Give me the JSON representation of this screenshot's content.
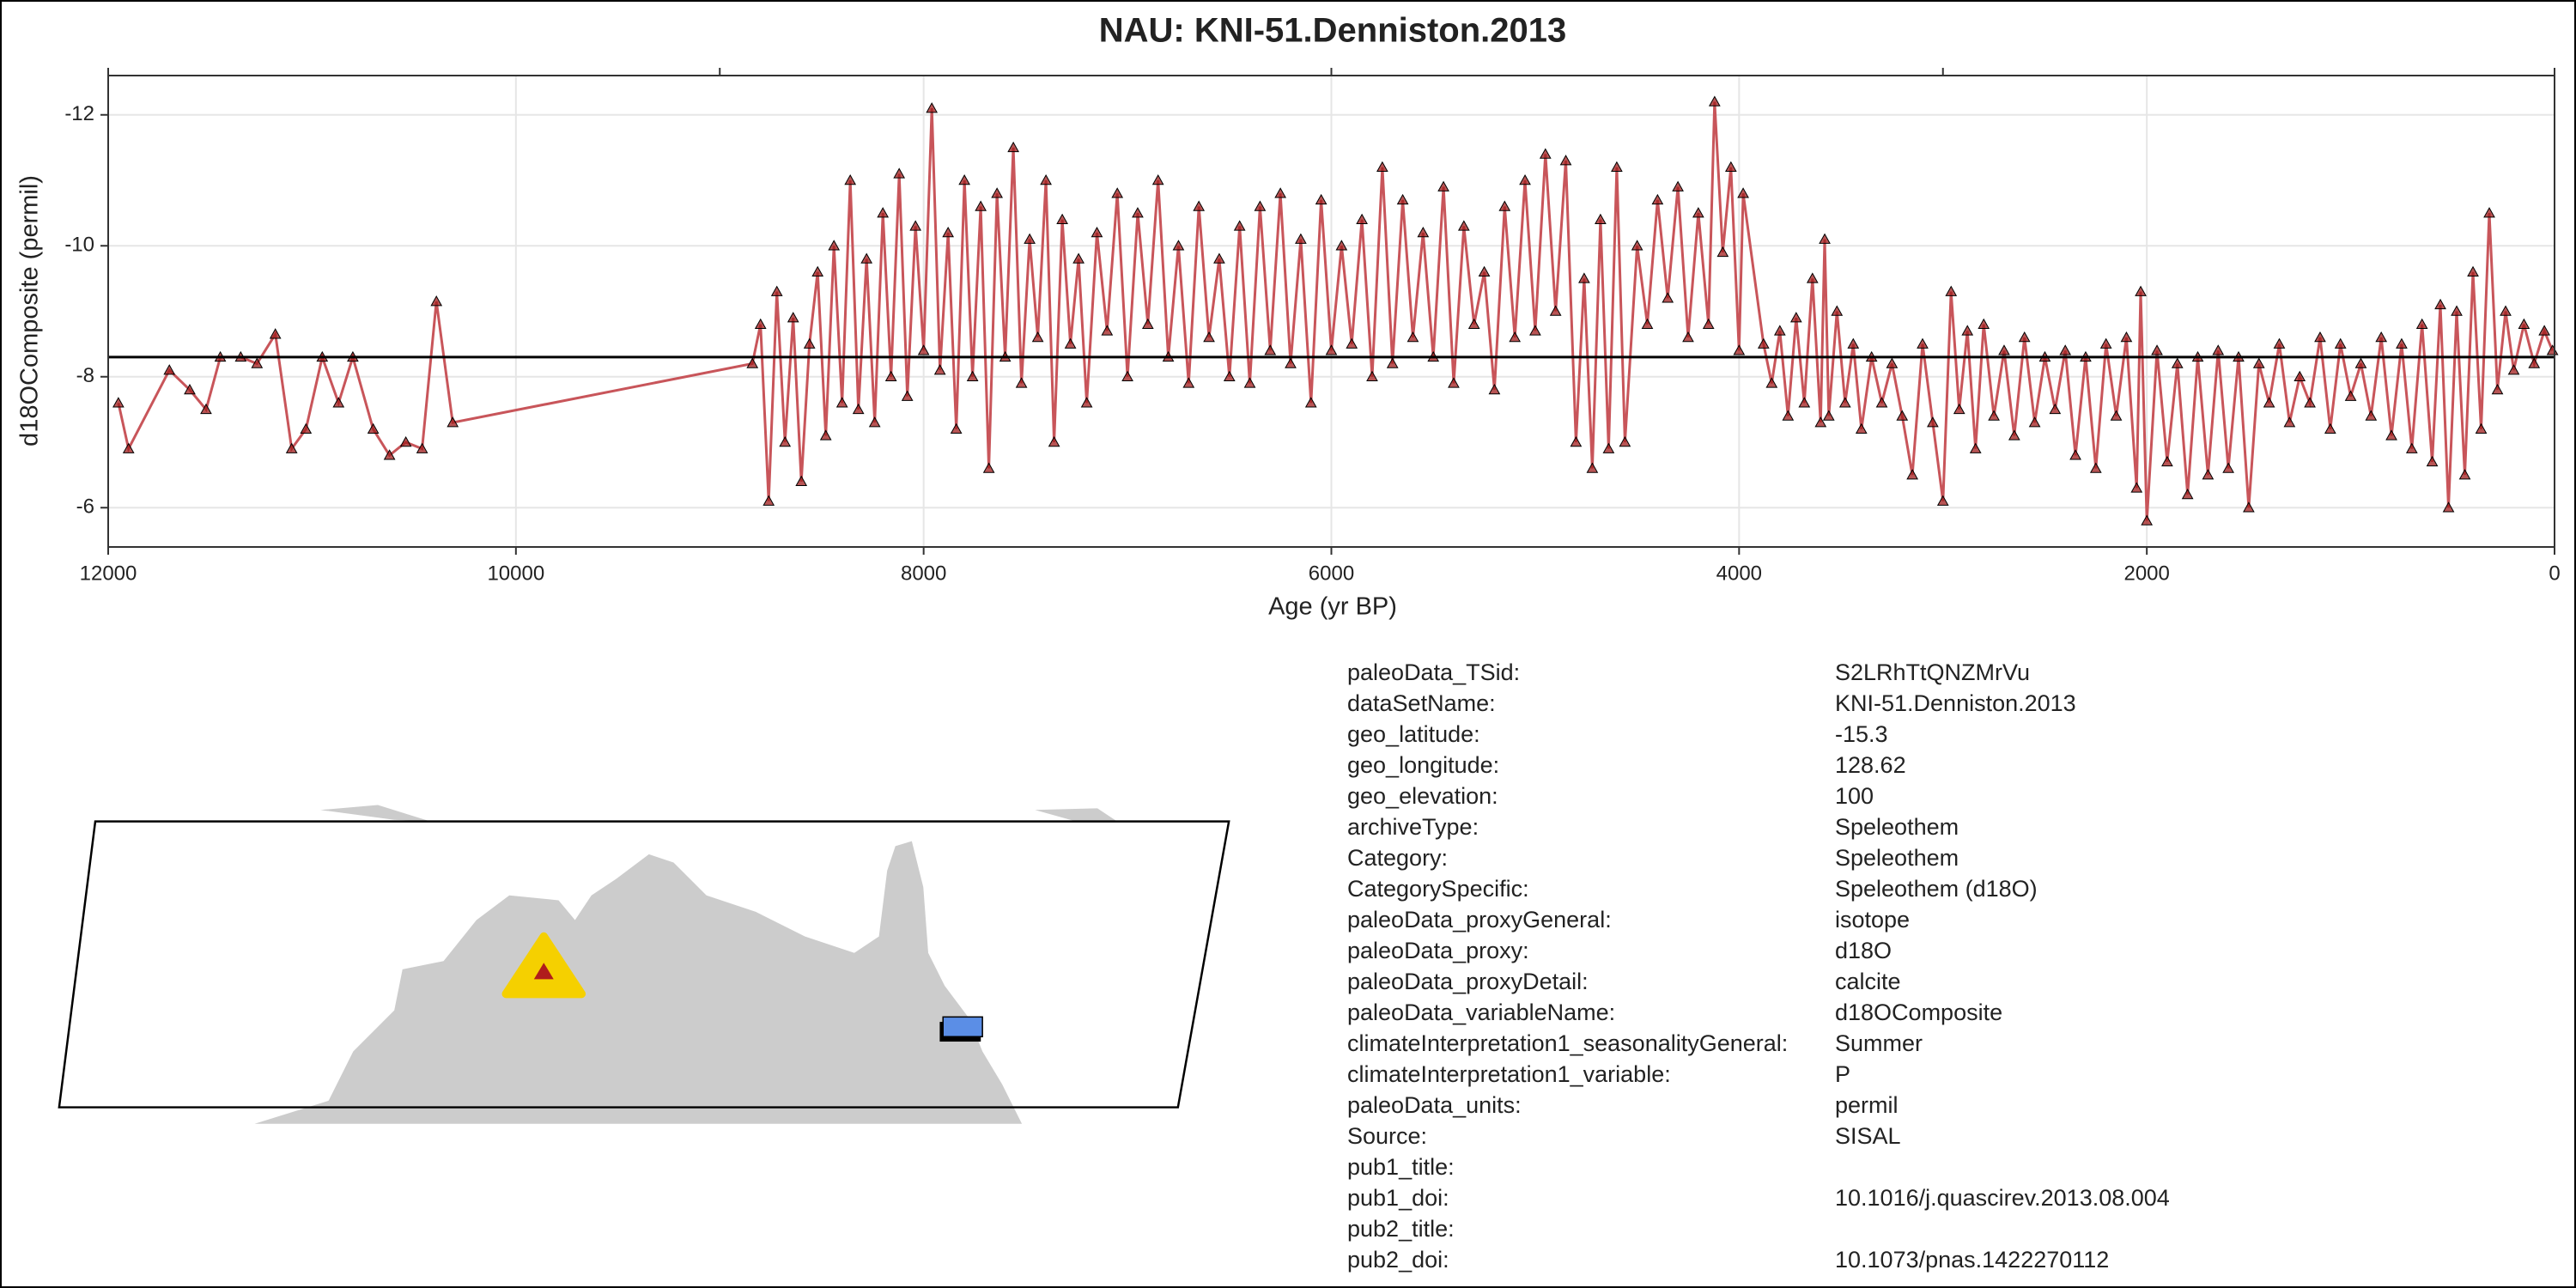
{
  "chart_data": {
    "type": "line",
    "title": "NAU: KNI-51.Denniston.2013",
    "x_label": "Age (yr BP)",
    "y_label": "d18OComposite (permil)",
    "xlim": [
      12000,
      0
    ],
    "xticks": [
      12000,
      10000,
      8000,
      6000,
      4000,
      2000,
      0
    ],
    "x2ticks": [
      12000,
      9000,
      6000,
      3000,
      0
    ],
    "ylim": [
      -5.4,
      -12.6
    ],
    "yticks": [
      -12,
      -10,
      -8,
      -6
    ],
    "grid": true,
    "color": "#c8555a",
    "marker_color": "#a01c1c",
    "hline": -8.3,
    "x": [
      11950,
      11900,
      11700,
      11600,
      11520,
      11450,
      11350,
      11270,
      11180,
      11100,
      11030,
      10950,
      10870,
      10800,
      10700,
      10620,
      10540,
      10460,
      10390,
      10310,
      8840,
      8800,
      8760,
      8720,
      8680,
      8640,
      8600,
      8560,
      8520,
      8480,
      8440,
      8400,
      8360,
      8320,
      8280,
      8240,
      8200,
      8160,
      8120,
      8080,
      8040,
      8000,
      7960,
      7920,
      7880,
      7840,
      7800,
      7760,
      7720,
      7680,
      7640,
      7600,
      7560,
      7520,
      7480,
      7440,
      7400,
      7360,
      7320,
      7280,
      7240,
      7200,
      7150,
      7100,
      7050,
      7000,
      6950,
      6900,
      6850,
      6800,
      6750,
      6700,
      6650,
      6600,
      6550,
      6500,
      6450,
      6400,
      6350,
      6300,
      6250,
      6200,
      6150,
      6100,
      6050,
      6000,
      5950,
      5900,
      5850,
      5800,
      5750,
      5700,
      5650,
      5600,
      5550,
      5500,
      5450,
      5400,
      5350,
      5300,
      5250,
      5200,
      5150,
      5100,
      5050,
      5000,
      4950,
      4900,
      4850,
      4800,
      4760,
      4720,
      4680,
      4640,
      4600,
      4560,
      4500,
      4450,
      4400,
      4350,
      4300,
      4250,
      4200,
      4150,
      4120,
      4080,
      4040,
      4000,
      3980,
      3880,
      3840,
      3800,
      3760,
      3720,
      3680,
      3640,
      3600,
      3580,
      3560,
      3520,
      3480,
      3440,
      3400,
      3350,
      3300,
      3250,
      3200,
      3150,
      3100,
      3050,
      3000,
      2960,
      2920,
      2880,
      2840,
      2800,
      2750,
      2700,
      2650,
      2600,
      2550,
      2500,
      2450,
      2400,
      2350,
      2300,
      2250,
      2200,
      2150,
      2100,
      2050,
      2030,
      2000,
      1950,
      1900,
      1850,
      1800,
      1750,
      1700,
      1650,
      1600,
      1550,
      1500,
      1450,
      1400,
      1350,
      1300,
      1250,
      1200,
      1150,
      1100,
      1050,
      1000,
      950,
      900,
      850,
      800,
      750,
      700,
      650,
      600,
      560,
      520,
      480,
      440,
      400,
      360,
      320,
      280,
      240,
      200,
      150,
      100,
      50,
      10
    ],
    "values": [
      -7.6,
      -6.9,
      -8.1,
      -7.8,
      -7.5,
      -8.3,
      -8.3,
      -8.2,
      -8.65,
      -6.9,
      -7.2,
      -8.3,
      -7.6,
      -8.3,
      -7.2,
      -6.8,
      -7.0,
      -6.9,
      -9.15,
      -7.3,
      -8.2,
      -8.8,
      -6.1,
      -9.3,
      -7.0,
      -8.9,
      -6.4,
      -8.5,
      -9.6,
      -7.1,
      -10.0,
      -7.6,
      -11.0,
      -7.5,
      -9.8,
      -7.3,
      -10.5,
      -8.0,
      -11.1,
      -7.7,
      -10.3,
      -8.4,
      -12.1,
      -8.1,
      -10.2,
      -7.2,
      -11.0,
      -8.0,
      -10.6,
      -6.6,
      -10.8,
      -8.3,
      -11.5,
      -7.9,
      -10.1,
      -8.6,
      -11.0,
      -7.0,
      -10.4,
      -8.5,
      -9.8,
      -7.6,
      -10.2,
      -8.7,
      -10.8,
      -8.0,
      -10.5,
      -8.8,
      -11.0,
      -8.3,
      -10.0,
      -7.9,
      -10.6,
      -8.6,
      -9.8,
      -8.0,
      -10.3,
      -7.9,
      -10.6,
      -8.4,
      -10.8,
      -8.2,
      -10.1,
      -7.6,
      -10.7,
      -8.4,
      -10.0,
      -8.5,
      -10.4,
      -8.0,
      -11.2,
      -8.2,
      -10.7,
      -8.6,
      -10.2,
      -8.3,
      -10.9,
      -7.9,
      -10.3,
      -8.8,
      -9.6,
      -7.8,
      -10.6,
      -8.6,
      -11.0,
      -8.7,
      -11.4,
      -9.0,
      -11.3,
      -7.0,
      -9.5,
      -6.6,
      -10.4,
      -6.9,
      -11.2,
      -7.0,
      -10.0,
      -8.8,
      -10.7,
      -9.2,
      -10.9,
      -8.6,
      -10.5,
      -8.8,
      -12.2,
      -9.9,
      -11.2,
      -8.4,
      -10.8,
      -8.5,
      -7.9,
      -8.7,
      -7.4,
      -8.9,
      -7.6,
      -9.5,
      -7.3,
      -10.1,
      -7.4,
      -9.0,
      -7.6,
      -8.5,
      -7.2,
      -8.3,
      -7.6,
      -8.2,
      -7.4,
      -6.5,
      -8.5,
      -7.3,
      -6.1,
      -9.3,
      -7.5,
      -8.7,
      -6.9,
      -8.8,
      -7.4,
      -8.4,
      -7.1,
      -8.6,
      -7.3,
      -8.3,
      -7.5,
      -8.4,
      -6.8,
      -8.3,
      -6.6,
      -8.5,
      -7.4,
      -8.6,
      -6.3,
      -9.3,
      -5.8,
      -8.4,
      -6.7,
      -8.2,
      -6.2,
      -8.3,
      -6.5,
      -8.4,
      -6.6,
      -8.3,
      -6.0,
      -8.2,
      -7.6,
      -8.5,
      -7.3,
      -8.0,
      -7.6,
      -8.6,
      -7.2,
      -8.5,
      -7.7,
      -8.2,
      -7.4,
      -8.6,
      -7.1,
      -8.5,
      -6.9,
      -8.8,
      -6.7,
      -9.1,
      -6.0,
      -9.0,
      -6.5,
      -9.6,
      -7.2,
      -10.5,
      -7.8,
      -9.0,
      -8.1,
      -8.8,
      -8.2,
      -8.7,
      -8.4
    ]
  },
  "metadata": {
    "rows": [
      {
        "key": "paleoData_TSid:",
        "value": "S2LRhTtQNZMrVu"
      },
      {
        "key": "dataSetName:",
        "value": "KNI-51.Denniston.2013"
      },
      {
        "key": "geo_latitude:",
        "value": "-15.3"
      },
      {
        "key": "geo_longitude:",
        "value": "128.62"
      },
      {
        "key": "geo_elevation:",
        "value": "100"
      },
      {
        "key": "archiveType:",
        "value": "Speleothem"
      },
      {
        "key": "Category:",
        "value": "Speleothem"
      },
      {
        "key": "CategorySpecific:",
        "value": "Speleothem (d18O)"
      },
      {
        "key": "paleoData_proxyGeneral:",
        "value": "isotope"
      },
      {
        "key": "paleoData_proxy:",
        "value": "d18O"
      },
      {
        "key": "paleoData_proxyDetail:",
        "value": "calcite"
      },
      {
        "key": "paleoData_variableName:",
        "value": "d18OComposite"
      },
      {
        "key": "climateInterpretation1_seasonalityGeneral:",
        "value": "Summer"
      },
      {
        "key": "climateInterpretation1_variable:",
        "value": "P"
      },
      {
        "key": "paleoData_units:",
        "value": "permil"
      },
      {
        "key": "Source:",
        "value": "SISAL"
      },
      {
        "key": "pub1_title:"
      },
      {
        "key": "pub1_doi:",
        "value": "10.1016/j.quascirev.2013.08.004"
      },
      {
        "key": "pub2_title:"
      },
      {
        "key": "pub2_doi:",
        "value": "10.1073/pnas.1422270112"
      }
    ]
  }
}
